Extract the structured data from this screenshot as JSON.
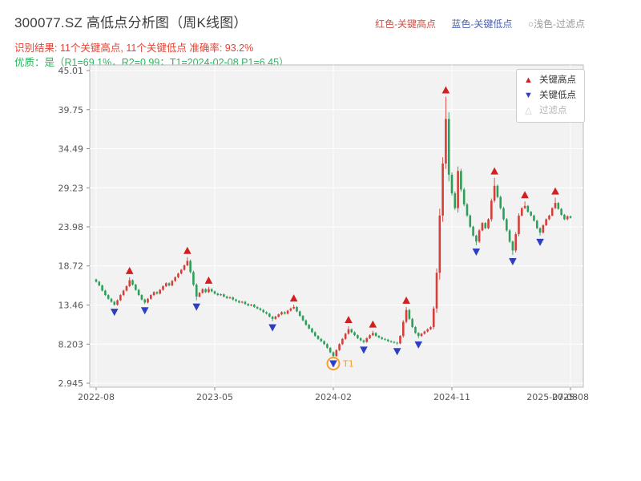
{
  "header": {
    "title": "300077.SZ 高低点分析图（周K线图）",
    "legend_high": "红色-关键高点",
    "legend_low": "蓝色-关键低点",
    "legend_filter": "○浅色-过滤点",
    "result_line": "识别结果: 11个关键高点, 11个关键低点  准确率: 93.2%",
    "quality_line": "优质：是（R1=69.1%，R2=0.99；T1=2024-02-08 P1=6.45）"
  },
  "icons": {
    "key_high_marker": "▲",
    "key_low_marker": "▼",
    "filtered_marker": "△"
  },
  "chart_data": {
    "type": "candlestick",
    "title": "300077.SZ 高低点分析图（周K线图）",
    "symbol": "300077.SZ",
    "frequency": "weekly",
    "ylim": [
      2.945,
      45.01
    ],
    "y_ticks": [
      45.01,
      39.75,
      34.49,
      29.23,
      23.98,
      18.72,
      13.46,
      8.203,
      2.945
    ],
    "x_ticks": [
      {
        "index": 0,
        "label": "2022-08"
      },
      {
        "index": 39,
        "label": "2023-05"
      },
      {
        "index": 78,
        "label": "2024-02"
      },
      {
        "index": 117,
        "label": "2024-11"
      },
      {
        "index": 156,
        "label": "2025-08"
      }
    ],
    "end_date_label": {
      "index": 150,
      "label": "2025-07-08"
    },
    "closes": [
      16.6,
      16.1,
      15.4,
      14.8,
      14.3,
      13.9,
      13.5,
      14.1,
      14.8,
      15.4,
      16.0,
      16.8,
      16.2,
      15.5,
      14.8,
      14.2,
      13.8,
      14.3,
      14.8,
      15.2,
      15.0,
      15.5,
      16.0,
      16.4,
      16.1,
      16.7,
      17.2,
      17.7,
      18.2,
      18.8,
      19.4,
      17.9,
      16.2,
      14.6,
      15.1,
      15.6,
      15.2,
      15.6,
      15.3,
      15.0,
      14.8,
      14.9,
      14.6,
      14.4,
      14.5,
      14.2,
      14.0,
      13.8,
      13.9,
      13.6,
      13.4,
      13.5,
      13.2,
      13.0,
      12.8,
      12.5,
      12.3,
      11.9,
      11.6,
      11.9,
      12.2,
      12.5,
      12.3,
      12.7,
      13.0,
      13.2,
      12.6,
      12.0,
      11.4,
      10.8,
      10.3,
      9.8,
      9.3,
      8.9,
      8.6,
      8.2,
      7.7,
      7.1,
      6.6,
      7.4,
      8.2,
      8.9,
      9.6,
      10.2,
      9.8,
      9.4,
      9.0,
      8.7,
      8.5,
      9.0,
      9.4,
      9.7,
      9.3,
      9.1,
      8.9,
      8.8,
      8.6,
      8.5,
      8.4,
      8.3,
      9.3,
      11.2,
      12.8,
      11.6,
      10.5,
      9.7,
      9.3,
      9.6,
      9.9,
      10.2,
      10.5,
      13.0,
      17.8,
      25.5,
      32.5,
      38.5,
      31.0,
      28.5,
      26.5,
      31.5,
      29.0,
      27.0,
      25.5,
      24.0,
      22.8,
      22.0,
      23.5,
      24.5,
      23.8,
      25.0,
      27.5,
      29.5,
      28.0,
      26.5,
      25.0,
      23.5,
      22.0,
      20.8,
      23.0,
      25.5,
      26.5,
      26.8,
      26.0,
      25.5,
      24.8,
      23.8,
      23.2,
      24.2,
      25.0,
      25.5,
      26.5,
      27.2,
      26.4,
      25.6,
      25.0,
      25.4,
      25.2
    ],
    "key_highs": [
      {
        "index": 11,
        "price": 17.2
      },
      {
        "index": 30,
        "price": 19.9
      },
      {
        "index": 37,
        "price": 15.9
      },
      {
        "index": 65,
        "price": 13.5
      },
      {
        "index": 83,
        "price": 10.6
      },
      {
        "index": 91,
        "price": 10.0
      },
      {
        "index": 102,
        "price": 13.2
      },
      {
        "index": 115,
        "price": 41.5
      },
      {
        "index": 131,
        "price": 30.6
      },
      {
        "index": 141,
        "price": 27.4
      },
      {
        "index": 151,
        "price": 27.9
      }
    ],
    "key_lows": [
      {
        "index": 6,
        "price": 13.4
      },
      {
        "index": 16,
        "price": 13.6
      },
      {
        "index": 33,
        "price": 14.1
      },
      {
        "index": 58,
        "price": 11.3
      },
      {
        "index": 78,
        "price": 6.45
      },
      {
        "index": 88,
        "price": 8.3
      },
      {
        "index": 99,
        "price": 8.1
      },
      {
        "index": 106,
        "price": 9.0
      },
      {
        "index": 125,
        "price": 21.5
      },
      {
        "index": 137,
        "price": 20.2
      },
      {
        "index": 146,
        "price": 22.8
      }
    ],
    "t1": {
      "index": 78,
      "price": 6.45,
      "label": "T1",
      "date": "2024-02-08"
    },
    "legend": [
      {
        "label": "关键高点",
        "marker": "up",
        "color": "#d21f1f"
      },
      {
        "label": "关键低点",
        "marker": "down",
        "color": "#2d3fc0"
      },
      {
        "label": "过滤点",
        "marker": "up-outline",
        "color": "#c9c9c9"
      }
    ],
    "colors": {
      "up": "#d43f3a",
      "down": "#2ca05a",
      "marker_high": "#d21f1f",
      "marker_low": "#2d3fc0",
      "t1": "#f59f2e",
      "plot_bg": "#f2f2f2",
      "grid": "#ffffff",
      "tick_text": "#555555",
      "spine": "#bbbbbb"
    }
  }
}
